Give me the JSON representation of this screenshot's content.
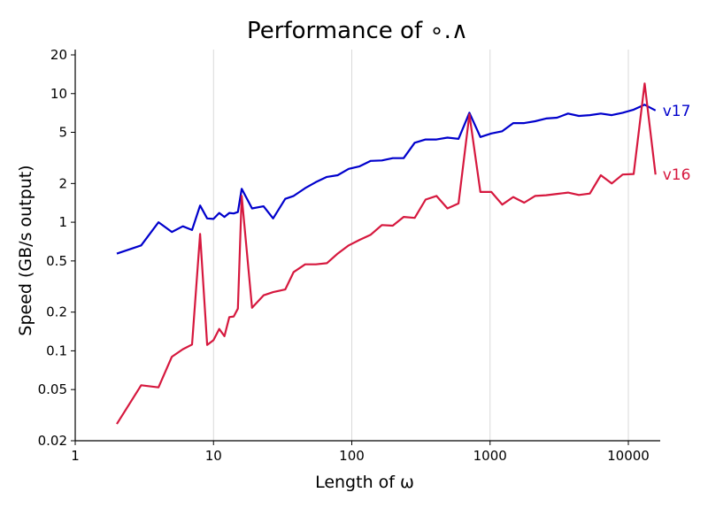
{
  "chart_data": {
    "type": "line",
    "title": "Performance of ∘.∧",
    "xlabel": "Length of ω",
    "ylabel": "Speed (GB/s output)",
    "xscale": "log",
    "yscale": "log",
    "xlim": [
      1,
      17000
    ],
    "ylim": [
      0.02,
      22
    ],
    "grid": "vertical at decades 10, 100, 1000, 10000",
    "legend": "direct labels at right end of each line",
    "x_ticks": [
      {
        "value": 1,
        "label": "1"
      },
      {
        "value": 10,
        "label": "10"
      },
      {
        "value": 100,
        "label": "100"
      },
      {
        "value": 1000,
        "label": "1000"
      },
      {
        "value": 10000,
        "label": "10000"
      }
    ],
    "y_ticks": [
      {
        "value": 0.02,
        "label": "0.02"
      },
      {
        "value": 0.05,
        "label": "0.05"
      },
      {
        "value": 0.1,
        "label": "0.1"
      },
      {
        "value": 0.2,
        "label": "0.2"
      },
      {
        "value": 0.5,
        "label": "0.5"
      },
      {
        "value": 1,
        "label": "1"
      },
      {
        "value": 2,
        "label": "2"
      },
      {
        "value": 5,
        "label": "5"
      },
      {
        "value": 10,
        "label": "10"
      },
      {
        "value": 20,
        "label": "20"
      }
    ],
    "series": [
      {
        "name": "v17",
        "color": "#0000cc",
        "points": [
          [
            2,
            0.57
          ],
          [
            3,
            0.66
          ],
          [
            4,
            1.0
          ],
          [
            5,
            0.84
          ],
          [
            6,
            0.93
          ],
          [
            7,
            0.87
          ],
          [
            8,
            1.35
          ],
          [
            9,
            1.07
          ],
          [
            10,
            1.06
          ],
          [
            11,
            1.18
          ],
          [
            12,
            1.1
          ],
          [
            13,
            1.18
          ],
          [
            14,
            1.17
          ],
          [
            15,
            1.2
          ],
          [
            16,
            1.82
          ],
          [
            19,
            1.28
          ],
          [
            23,
            1.33
          ],
          [
            27,
            1.07
          ],
          [
            33,
            1.52
          ],
          [
            38,
            1.6
          ],
          [
            46,
            1.84
          ],
          [
            55,
            2.05
          ],
          [
            66,
            2.25
          ],
          [
            79,
            2.32
          ],
          [
            95,
            2.6
          ],
          [
            114,
            2.72
          ],
          [
            137,
            3.0
          ],
          [
            165,
            3.02
          ],
          [
            198,
            3.15
          ],
          [
            237,
            3.15
          ],
          [
            285,
            4.15
          ],
          [
            342,
            4.4
          ],
          [
            410,
            4.4
          ],
          [
            492,
            4.55
          ],
          [
            591,
            4.45
          ],
          [
            709,
            7.1
          ],
          [
            851,
            4.6
          ],
          [
            1021,
            4.9
          ],
          [
            1225,
            5.1
          ],
          [
            1470,
            5.9
          ],
          [
            1764,
            5.9
          ],
          [
            2117,
            6.1
          ],
          [
            2540,
            6.4
          ],
          [
            3048,
            6.5
          ],
          [
            3658,
            7.0
          ],
          [
            4389,
            6.7
          ],
          [
            5267,
            6.8
          ],
          [
            6321,
            7.0
          ],
          [
            7585,
            6.8
          ],
          [
            9102,
            7.1
          ],
          [
            10923,
            7.5
          ],
          [
            13107,
            8.2
          ],
          [
            15729,
            7.4
          ]
        ]
      },
      {
        "name": "v16",
        "color": "#d6183e",
        "points": [
          [
            2,
            0.027
          ],
          [
            3,
            0.054
          ],
          [
            4,
            0.052
          ],
          [
            5,
            0.09
          ],
          [
            6,
            0.103
          ],
          [
            7,
            0.112
          ],
          [
            8,
            0.81
          ],
          [
            9,
            0.111
          ],
          [
            10,
            0.121
          ],
          [
            11,
            0.148
          ],
          [
            12,
            0.13
          ],
          [
            13,
            0.183
          ],
          [
            14,
            0.185
          ],
          [
            15,
            0.213
          ],
          [
            16,
            1.6
          ],
          [
            19,
            0.216
          ],
          [
            23,
            0.27
          ],
          [
            27,
            0.286
          ],
          [
            33,
            0.3
          ],
          [
            38,
            0.41
          ],
          [
            46,
            0.47
          ],
          [
            55,
            0.47
          ],
          [
            66,
            0.48
          ],
          [
            79,
            0.57
          ],
          [
            95,
            0.66
          ],
          [
            114,
            0.73
          ],
          [
            137,
            0.8
          ],
          [
            165,
            0.95
          ],
          [
            198,
            0.94
          ],
          [
            237,
            1.1
          ],
          [
            285,
            1.08
          ],
          [
            342,
            1.5
          ],
          [
            410,
            1.6
          ],
          [
            492,
            1.28
          ],
          [
            591,
            1.4
          ],
          [
            709,
            6.9
          ],
          [
            851,
            1.72
          ],
          [
            1021,
            1.72
          ],
          [
            1225,
            1.37
          ],
          [
            1470,
            1.57
          ],
          [
            1764,
            1.42
          ],
          [
            2117,
            1.6
          ],
          [
            2540,
            1.62
          ],
          [
            3048,
            1.66
          ],
          [
            3658,
            1.7
          ],
          [
            4389,
            1.63
          ],
          [
            5267,
            1.67
          ],
          [
            6321,
            2.32
          ],
          [
            7585,
            2.0
          ],
          [
            9102,
            2.35
          ],
          [
            10923,
            2.37
          ],
          [
            13107,
            12.0
          ],
          [
            15729,
            2.35
          ]
        ]
      }
    ]
  }
}
